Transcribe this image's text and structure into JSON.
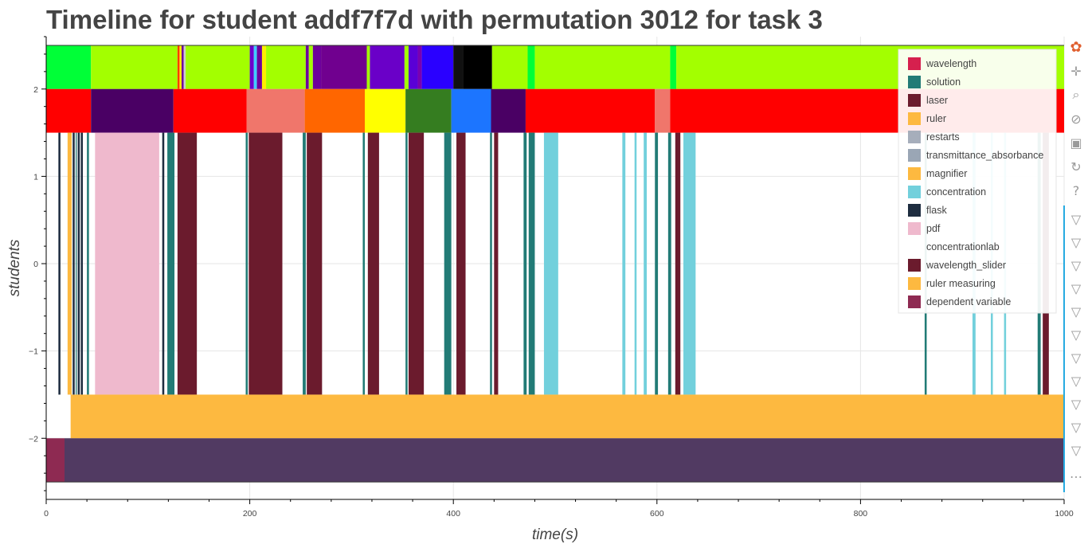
{
  "title": "Timeline for student addf7f7d with permutation 3012 for task 3",
  "chart_data": {
    "type": "timeline",
    "title": "Timeline for student addf7f7d with permutation 3012 for task 3",
    "xlabel": "time(s)",
    "ylabel": "students",
    "xlim": [
      0,
      1000
    ],
    "ylim": [
      -2.7,
      2.6
    ],
    "x_ticks": [
      0,
      200,
      400,
      600,
      800,
      1000
    ],
    "y_ticks": [
      2,
      1,
      0,
      -1,
      -2
    ],
    "y_tick_labels": [
      "2",
      "1",
      "0",
      "−1",
      "−2"
    ],
    "grid": true,
    "legend_position": "top-right",
    "legend": [
      {
        "label": "wavelength",
        "color": "#d6204e"
      },
      {
        "label": "solution",
        "color": "#227b76"
      },
      {
        "label": "laser",
        "color": "#6b1b2d"
      },
      {
        "label": "ruler",
        "color": "#fdb940"
      },
      {
        "label": "restarts",
        "color": "#a6aebb"
      },
      {
        "label": "transmittance_absorbance",
        "color": "#9aa6b5"
      },
      {
        "label": "magnifier",
        "color": "#fdb940"
      },
      {
        "label": "concentration",
        "color": "#72d0dc"
      },
      {
        "label": "flask",
        "color": "#1e2d40"
      },
      {
        "label": "pdf",
        "color": "#efb9cd"
      },
      {
        "label": "concentrationlab",
        "color": "#ffffff"
      },
      {
        "label": "wavelength_slider",
        "color": "#6b1b2d"
      },
      {
        "label": "ruler measuring",
        "color": "#fdb940"
      },
      {
        "label": "dependent variable",
        "color": "#8e2a52"
      }
    ],
    "rows": [
      {
        "y0": 2.0,
        "y1": 2.5,
        "segments": [
          [
            0,
            44,
            "#00ff37"
          ],
          [
            44,
            129,
            "#a3ff00"
          ],
          [
            129,
            131,
            "#ff3c00"
          ],
          [
            131,
            133,
            "#ffee00"
          ],
          [
            133,
            135,
            "#6d009c"
          ],
          [
            135,
            137,
            "#cccccc"
          ],
          [
            137,
            200,
            "#a3ff00"
          ],
          [
            200,
            204,
            "#6d00cc"
          ],
          [
            204,
            207,
            "#40ccff"
          ],
          [
            207,
            212,
            "#6d009c"
          ],
          [
            212,
            216,
            "#ffee00"
          ],
          [
            216,
            255,
            "#a3ff00"
          ],
          [
            255,
            258,
            "#6d009c"
          ],
          [
            258,
            262,
            "#a3ff00"
          ],
          [
            262,
            270,
            "#6d009c"
          ],
          [
            270,
            315,
            "#70008f"
          ],
          [
            315,
            318,
            "#a3ff00"
          ],
          [
            318,
            352,
            "#6a00c8"
          ],
          [
            352,
            356,
            "#a3ff00"
          ],
          [
            356,
            365,
            "#5a00d6"
          ],
          [
            365,
            369,
            "#7a00b0"
          ],
          [
            369,
            400,
            "#2a00ff"
          ],
          [
            400,
            410,
            "#111111"
          ],
          [
            410,
            438,
            "#000000"
          ],
          [
            438,
            473,
            "#a3ff00"
          ],
          [
            473,
            480,
            "#00ff37"
          ],
          [
            480,
            613,
            "#a3ff00"
          ],
          [
            613,
            619,
            "#00ff37"
          ],
          [
            619,
            1000,
            "#a3ff00"
          ]
        ]
      },
      {
        "y0": 1.5,
        "y1": 2.0,
        "segments": [
          [
            0,
            44,
            "#ff0000"
          ],
          [
            44,
            125,
            "#4a0064"
          ],
          [
            125,
            197,
            "#ff0000"
          ],
          [
            197,
            254,
            "#f0766b"
          ],
          [
            254,
            313,
            "#ff6600"
          ],
          [
            313,
            353,
            "#ffff00"
          ],
          [
            353,
            398,
            "#357d20"
          ],
          [
            398,
            437,
            "#1c75ff"
          ],
          [
            437,
            471,
            "#4a0064"
          ],
          [
            471,
            598,
            "#ff0000"
          ],
          [
            598,
            613,
            "#f0766b"
          ],
          [
            613,
            1000,
            "#ff0000"
          ]
        ]
      },
      {
        "y0": -1.5,
        "y1": 1.5,
        "segments": [
          [
            12,
            14,
            "#1e2d40"
          ],
          [
            21,
            25,
            "#fdb940"
          ],
          [
            26,
            28,
            "#1e2d40"
          ],
          [
            29,
            30,
            "#227b76"
          ],
          [
            31,
            33,
            "#1e2d40"
          ],
          [
            34,
            36,
            "#1e2d40"
          ],
          [
            40,
            42,
            "#227b76"
          ],
          [
            48,
            111,
            "#efb9cd"
          ],
          [
            114,
            116,
            "#1e2d40"
          ],
          [
            119,
            126,
            "#227b76"
          ],
          [
            129,
            148,
            "#6b1b2d"
          ],
          [
            196,
            198,
            "#227b76"
          ],
          [
            199,
            232,
            "#6b1b2d"
          ],
          [
            252,
            255,
            "#227b76"
          ],
          [
            256,
            271,
            "#6b1b2d"
          ],
          [
            311,
            313,
            "#227b76"
          ],
          [
            316,
            327,
            "#6b1b2d"
          ],
          [
            353,
            355,
            "#227b76"
          ],
          [
            356,
            371,
            "#6b1b2d"
          ],
          [
            391,
            398,
            "#227b76"
          ],
          [
            403,
            412,
            "#6b1b2d"
          ],
          [
            436,
            438,
            "#227b76"
          ],
          [
            440,
            444,
            "#6b1b2d"
          ],
          [
            469,
            472,
            "#227b76"
          ],
          [
            474,
            480,
            "#227b76"
          ],
          [
            489,
            503,
            "#72d0dc"
          ],
          [
            566,
            569,
            "#72d0dc"
          ],
          [
            578,
            580,
            "#72d0dc"
          ],
          [
            587,
            590,
            "#72d0dc"
          ],
          [
            598,
            601,
            "#227b76"
          ],
          [
            611,
            614,
            "#227b76"
          ],
          [
            618,
            623,
            "#6b1b2d"
          ],
          [
            626,
            638,
            "#72d0dc"
          ],
          [
            863,
            865,
            "#227b76"
          ],
          [
            910,
            913,
            "#72d0dc"
          ],
          [
            928,
            930,
            "#72d0dc"
          ],
          [
            941,
            943,
            "#72d0dc"
          ],
          [
            974,
            977,
            "#227b76"
          ],
          [
            979,
            985,
            "#6b1b2d"
          ]
        ]
      },
      {
        "y0": -2.0,
        "y1": -1.5,
        "segments": [
          [
            24,
            1000,
            "#fdb940"
          ]
        ]
      },
      {
        "y0": -2.5,
        "y1": -2.0,
        "segments": [
          [
            0,
            18,
            "#8e2a52"
          ],
          [
            18,
            1000,
            "#513a62"
          ]
        ]
      }
    ]
  },
  "toolbar": {
    "tools": [
      {
        "name": "bokeh-logo-icon",
        "glyph": "✿"
      },
      {
        "name": "pan-icon",
        "glyph": "✛"
      },
      {
        "name": "box-zoom-icon",
        "glyph": "⌕"
      },
      {
        "name": "wheel-zoom-icon",
        "glyph": "⊘"
      },
      {
        "name": "save-icon",
        "glyph": "▣"
      },
      {
        "name": "reset-icon",
        "glyph": "↻"
      },
      {
        "name": "help-icon",
        "glyph": "?"
      },
      {
        "name": "hover-icon",
        "glyph": "▽"
      },
      {
        "name": "hover-icon",
        "glyph": "▽"
      },
      {
        "name": "hover-icon",
        "glyph": "▽"
      },
      {
        "name": "hover-icon",
        "glyph": "▽"
      },
      {
        "name": "hover-icon",
        "glyph": "▽"
      },
      {
        "name": "hover-icon",
        "glyph": "▽"
      },
      {
        "name": "hover-icon",
        "glyph": "▽"
      },
      {
        "name": "hover-icon",
        "glyph": "▽"
      },
      {
        "name": "hover-icon",
        "glyph": "▽"
      },
      {
        "name": "hover-icon",
        "glyph": "▽"
      },
      {
        "name": "hover-icon",
        "glyph": "▽"
      },
      {
        "name": "more-icon",
        "glyph": "…"
      }
    ]
  }
}
